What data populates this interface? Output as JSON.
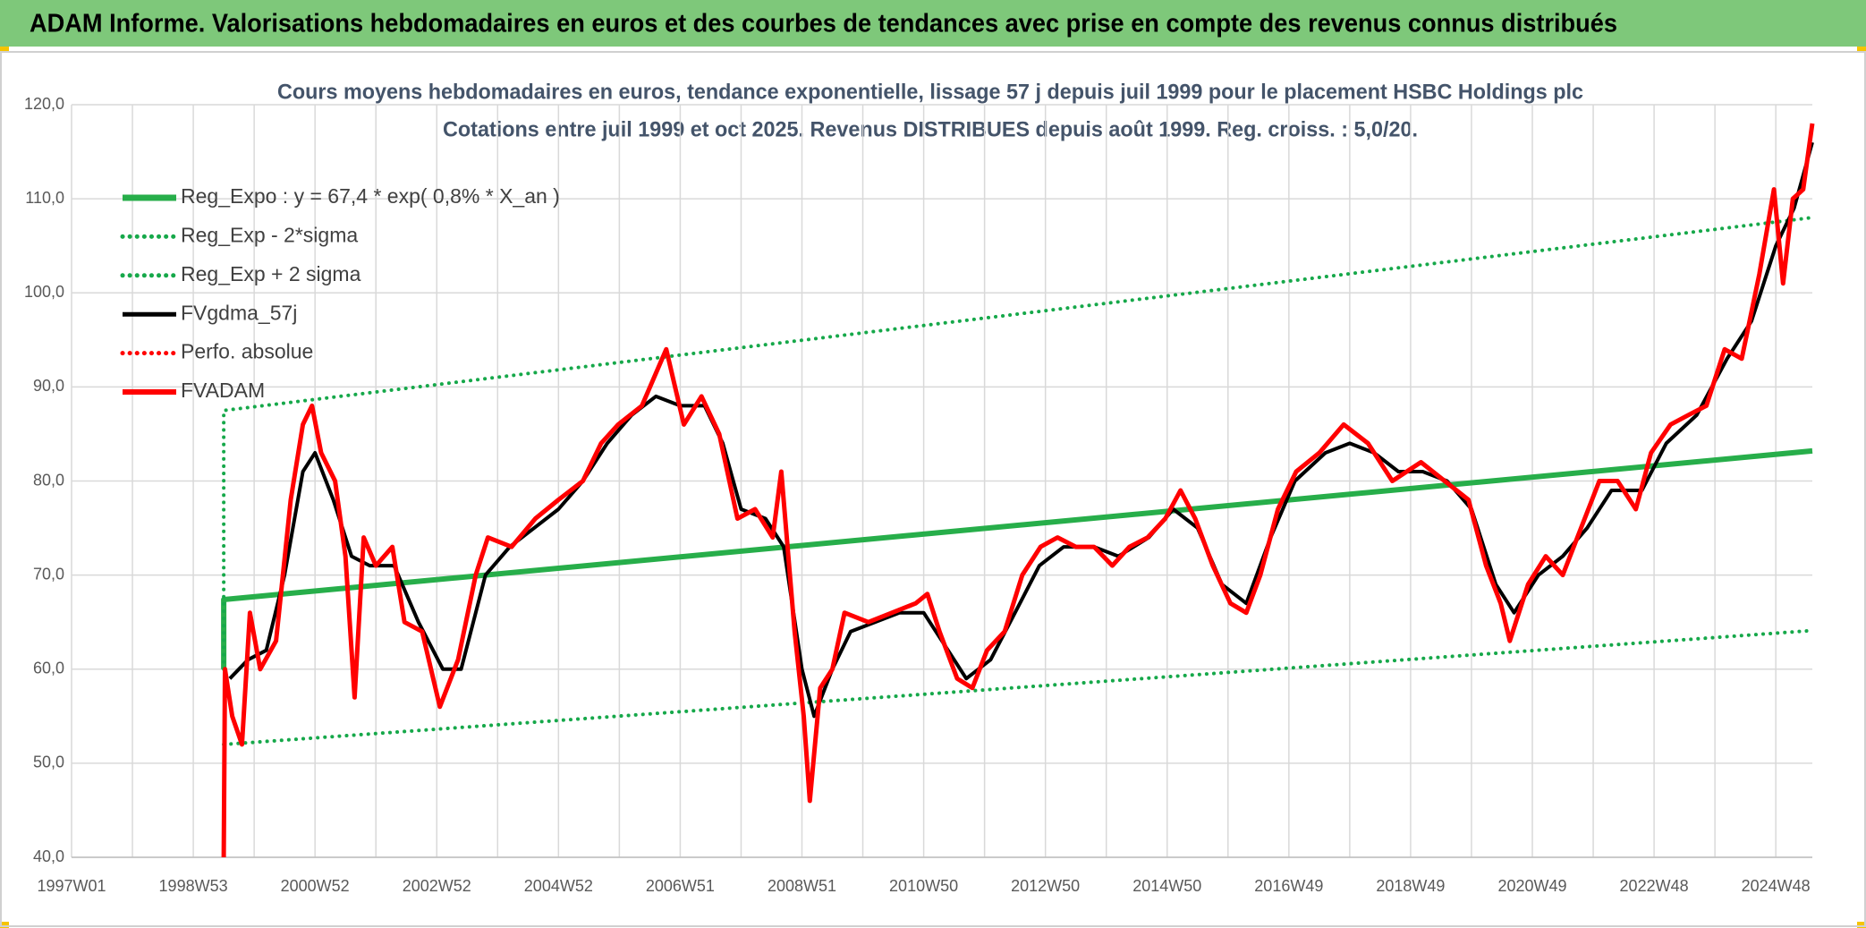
{
  "header": {
    "title": "ADAM Informe. Valorisations hebdomadaires en euros et des courbes de tendances avec prise en compte des revenus connus distribués"
  },
  "chart_data": {
    "type": "line",
    "title": "Cours moyens hebdomadaires en euros, tendance exponentielle, lissage 57 j depuis juil 1999 pour le placement HSBC Holdings plc",
    "subtitle": "Cotations entre juil 1999  et oct 2025. Revenus DISTRIBUES depuis août 1999. Reg. croiss. : 5,0/20.",
    "xlim": [
      1997,
      2025.6
    ],
    "xticks": [
      {
        "value": 1997,
        "label": "1997W01"
      },
      {
        "value": 1999,
        "label": "1998W53"
      },
      {
        "value": 2001,
        "label": "2000W52"
      },
      {
        "value": 2003,
        "label": "2002W52"
      },
      {
        "value": 2005,
        "label": "2004W52"
      },
      {
        "value": 2007,
        "label": "2006W51"
      },
      {
        "value": 2009,
        "label": "2008W51"
      },
      {
        "value": 2011,
        "label": "2010W50"
      },
      {
        "value": 2013,
        "label": "2012W50"
      },
      {
        "value": 2015,
        "label": "2014W50"
      },
      {
        "value": 2017,
        "label": "2016W49"
      },
      {
        "value": 2019,
        "label": "2018W49"
      },
      {
        "value": 2021,
        "label": "2020W49"
      },
      {
        "value": 2023,
        "label": "2022W48"
      },
      {
        "value": 2025,
        "label": "2024W48"
      }
    ],
    "xminor_ticks": [
      1998,
      2000,
      2002,
      2004,
      2006,
      2008,
      2010,
      2012,
      2014,
      2016,
      2018,
      2020,
      2022,
      2024
    ],
    "ylim": [
      40,
      120
    ],
    "yticks": [
      {
        "value": 40,
        "label": "40,0"
      },
      {
        "value": 50,
        "label": "50,0"
      },
      {
        "value": 60,
        "label": "60,0"
      },
      {
        "value": 70,
        "label": "70,0"
      },
      {
        "value": 80,
        "label": "80,0"
      },
      {
        "value": 90,
        "label": "90,0"
      },
      {
        "value": 100,
        "label": "100,0"
      },
      {
        "value": 110,
        "label": "110,0"
      },
      {
        "value": 120,
        "label": "120,0"
      }
    ],
    "grid": true,
    "legend": "upper left",
    "series": [
      {
        "name": "Reg_Expo : y = 67,4 * exp( 0,8% *  X_an )",
        "color": "#27ae4a",
        "style": "solid",
        "width": 6,
        "x": [
          1999.5,
          1999.5,
          2025.6
        ],
        "values": [
          60,
          67.4,
          83.2
        ]
      },
      {
        "name": "Reg_Exp - 2*sigma",
        "color": "#16a84a",
        "style": "dotted",
        "width": 4,
        "x": [
          1999.5,
          2025.6
        ],
        "values": [
          52,
          64.1
        ]
      },
      {
        "name": "Reg_Exp + 2 sigma",
        "color": "#16a84a",
        "style": "dotted",
        "width": 4,
        "x": [
          1999.5,
          1999.5,
          2025.6
        ],
        "values": [
          60,
          87.5,
          108
        ]
      },
      {
        "name": "FVgdma_57j",
        "color": "#000000",
        "style": "solid",
        "width": 4,
        "x": [
          1999.6,
          1999.9,
          2000.2,
          2000.5,
          2000.8,
          2001.0,
          2001.3,
          2001.6,
          2001.9,
          2002.3,
          2002.7,
          2003.1,
          2003.4,
          2003.8,
          2004.2,
          2004.6,
          2005.0,
          2005.4,
          2005.8,
          2006.2,
          2006.6,
          2007.0,
          2007.4,
          2007.7,
          2008.0,
          2008.4,
          2008.7,
          2009.0,
          2009.2,
          2009.5,
          2009.8,
          2010.2,
          2010.6,
          2011.0,
          2011.4,
          2011.7,
          2012.1,
          2012.5,
          2012.9,
          2013.3,
          2013.8,
          2014.2,
          2014.7,
          2015.1,
          2015.5,
          2015.9,
          2016.3,
          2016.7,
          2017.1,
          2017.6,
          2018.0,
          2018.4,
          2018.8,
          2019.2,
          2019.6,
          2020.0,
          2020.4,
          2020.7,
          2021.1,
          2021.5,
          2021.9,
          2022.3,
          2022.8,
          2023.2,
          2023.7,
          2024.2,
          2024.6,
          2025.0,
          2025.3,
          2025.6
        ],
        "values": [
          59,
          61,
          62,
          70,
          81,
          83,
          78,
          72,
          71,
          71,
          65,
          60,
          60,
          70,
          73,
          75,
          77,
          80,
          84,
          87,
          89,
          88,
          88,
          84,
          77,
          76,
          73,
          60,
          55,
          60,
          64,
          65,
          66,
          66,
          62,
          59,
          61,
          66,
          71,
          73,
          73,
          72,
          74,
          77,
          75,
          69,
          67,
          74,
          80,
          83,
          84,
          83,
          81,
          81,
          80,
          77,
          69,
          66,
          70,
          72,
          75,
          79,
          79,
          84,
          87,
          93,
          97,
          105,
          109,
          116
        ]
      },
      {
        "name": "Perfo. absolue",
        "color": "#ff0000",
        "style": "dotted",
        "width": 4,
        "x": [],
        "values": []
      },
      {
        "name": "FVADAM",
        "color": "#ff0000",
        "style": "solid",
        "width": 5,
        "x": [
          1999.5,
          1999.52,
          1999.64,
          1999.8,
          1999.93,
          2000.1,
          2000.36,
          2000.6,
          2000.8,
          2000.95,
          2001.1,
          2001.33,
          2001.5,
          2001.65,
          2001.8,
          2002.0,
          2002.27,
          2002.47,
          2002.76,
          2003.05,
          2003.35,
          2003.64,
          2003.84,
          2004.23,
          2004.62,
          2005.0,
          2005.4,
          2005.7,
          2005.98,
          2006.37,
          2006.77,
          2007.06,
          2007.35,
          2007.64,
          2007.94,
          2008.23,
          2008.52,
          2008.66,
          2008.88,
          2009.03,
          2009.13,
          2009.3,
          2009.5,
          2009.7,
          2010.09,
          2010.48,
          2010.87,
          2011.06,
          2011.26,
          2011.55,
          2011.8,
          2012.04,
          2012.33,
          2012.62,
          2012.92,
          2013.2,
          2013.5,
          2013.8,
          2014.1,
          2014.38,
          2014.68,
          2014.97,
          2015.22,
          2015.46,
          2015.75,
          2016.04,
          2016.3,
          2016.53,
          2016.82,
          2017.12,
          2017.5,
          2017.9,
          2018.3,
          2018.7,
          2019.17,
          2019.56,
          2019.95,
          2020.24,
          2020.48,
          2020.63,
          2020.93,
          2021.22,
          2021.5,
          2021.8,
          2022.1,
          2022.4,
          2022.7,
          2022.95,
          2023.27,
          2023.56,
          2023.86,
          2024.16,
          2024.44,
          2024.73,
          2024.97,
          2025.12,
          2025.28,
          2025.45,
          2025.6
        ],
        "values": [
          40,
          60,
          55,
          52,
          66,
          60,
          63,
          78,
          86,
          88,
          83,
          80,
          72,
          57,
          74,
          71,
          73,
          65,
          64,
          56,
          61,
          70,
          74,
          73,
          76,
          78,
          80,
          84,
          86,
          88,
          94,
          86,
          89,
          85,
          76,
          77,
          74,
          81,
          64,
          55,
          46,
          58,
          60,
          66,
          65,
          66,
          67,
          68,
          64,
          59,
          58,
          62,
          64,
          70,
          73,
          74,
          73,
          73,
          71,
          73,
          74,
          76,
          79,
          76,
          71,
          67,
          66,
          70,
          77,
          81,
          83,
          86,
          84,
          80,
          82,
          80,
          78,
          71,
          67,
          63,
          69,
          72,
          70,
          75,
          80,
          80,
          77,
          83,
          86,
          87,
          88,
          94,
          93,
          102,
          111,
          101,
          110,
          111,
          118
        ]
      }
    ]
  }
}
